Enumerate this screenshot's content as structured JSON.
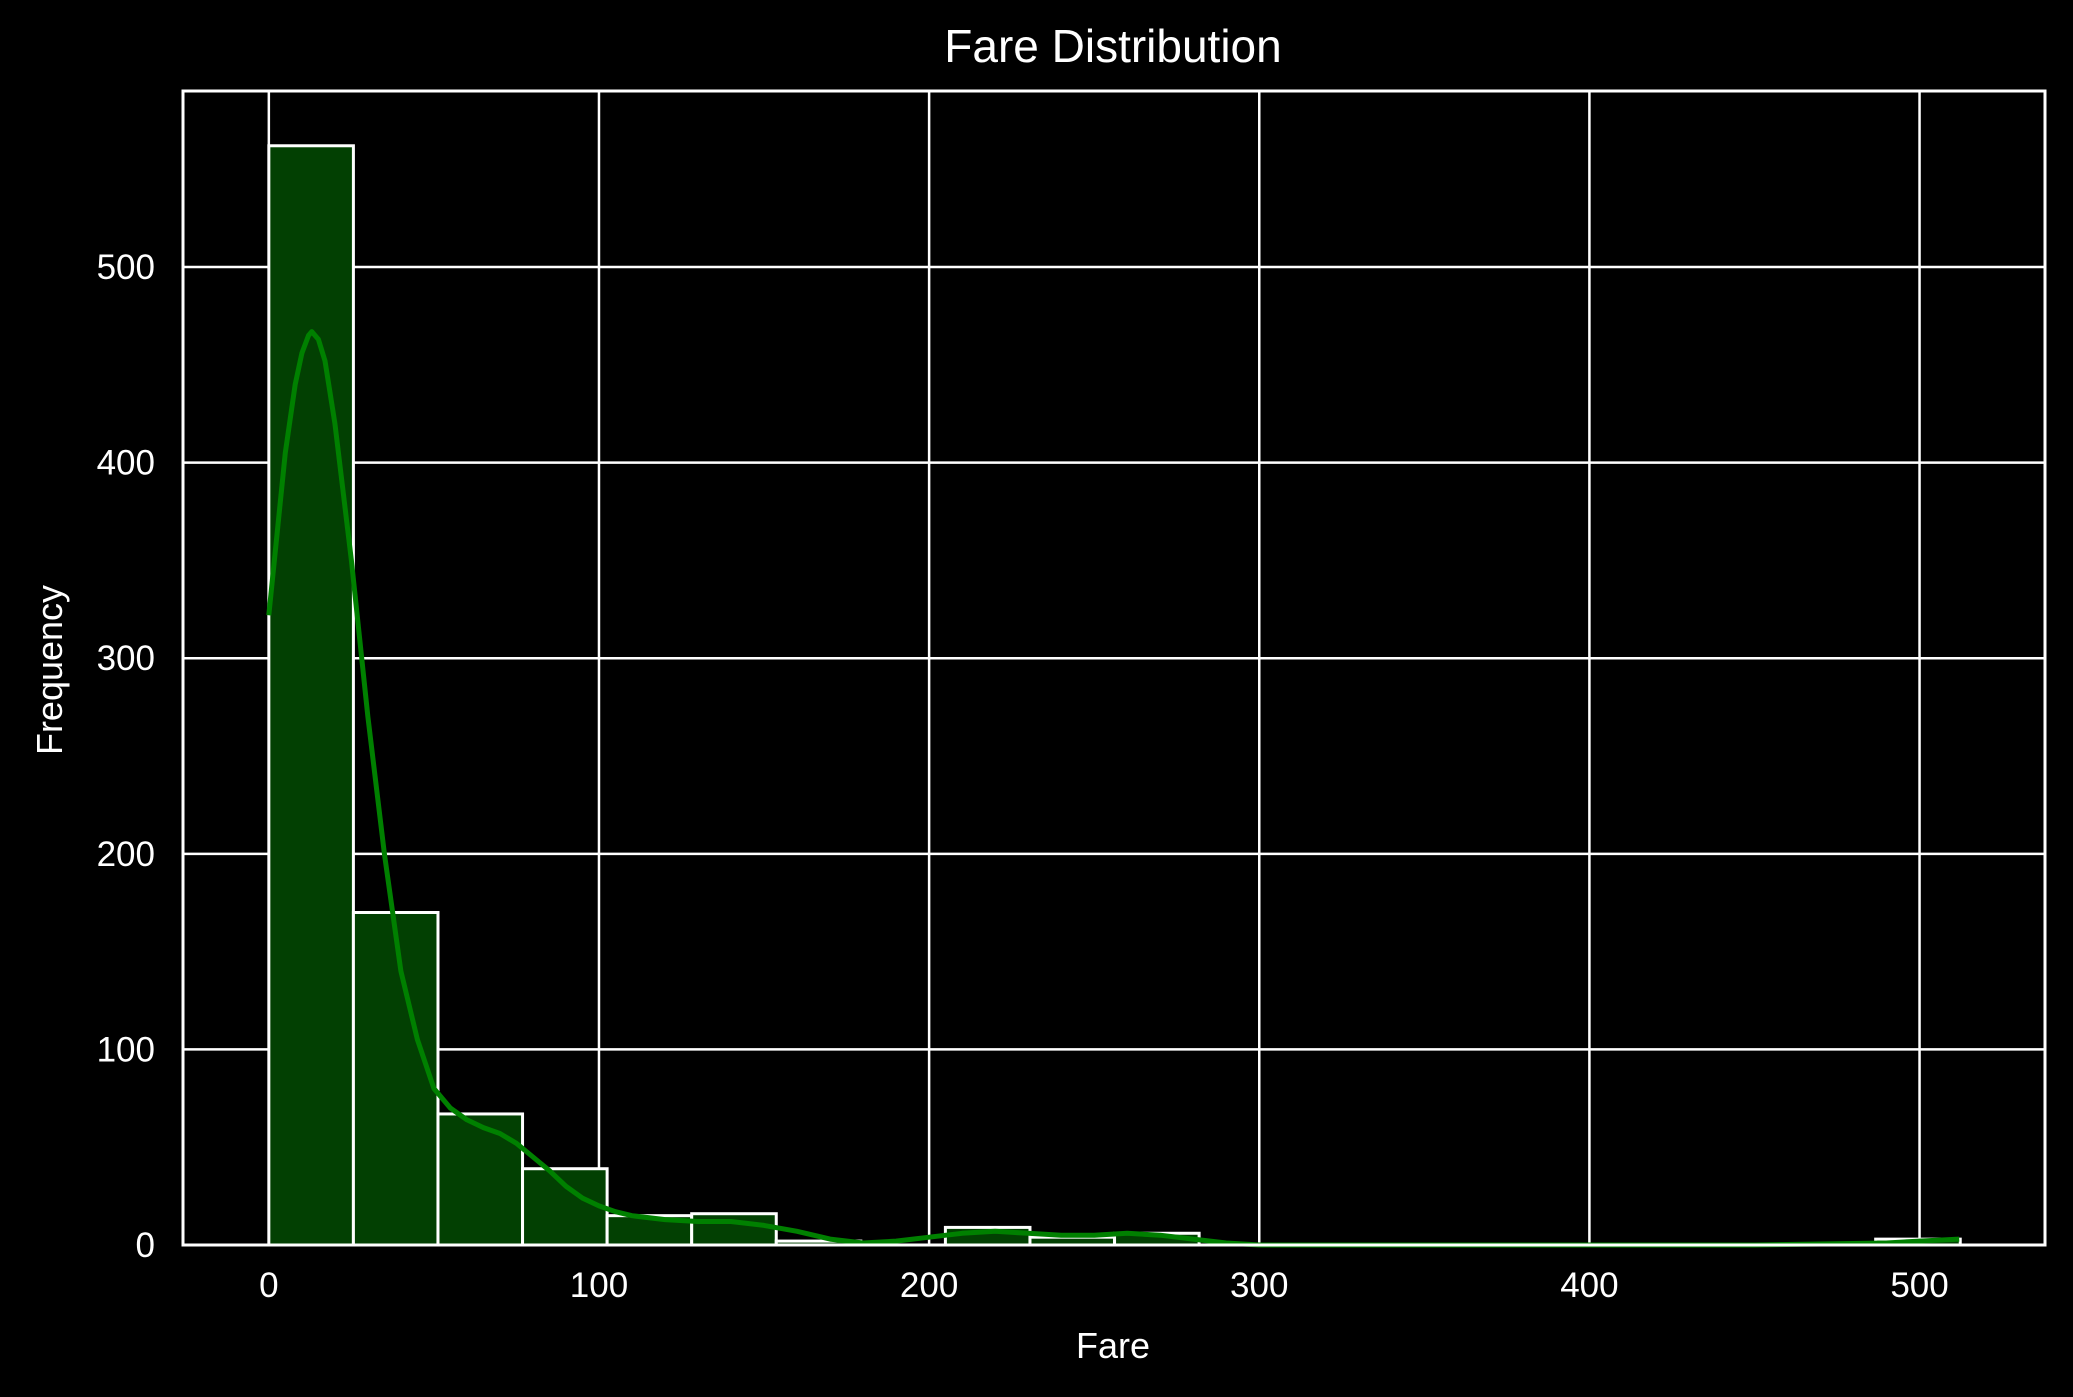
{
  "chart_data": {
    "type": "bar",
    "title": "Fare Distribution",
    "xlabel": "Fare",
    "ylabel": "Frequency",
    "xlim": [
      -26,
      538
    ],
    "ylim": [
      0,
      590
    ],
    "x_ticks": [
      0,
      100,
      200,
      300,
      400,
      500
    ],
    "y_ticks": [
      0,
      100,
      200,
      300,
      400,
      500
    ],
    "grid": true,
    "bin_width": 25.616,
    "bins": [
      {
        "start": 0.0,
        "count": 562
      },
      {
        "start": 25.616,
        "count": 170
      },
      {
        "start": 51.233,
        "count": 67
      },
      {
        "start": 76.849,
        "count": 39
      },
      {
        "start": 102.466,
        "count": 15
      },
      {
        "start": 128.082,
        "count": 16
      },
      {
        "start": 153.699,
        "count": 2
      },
      {
        "start": 179.315,
        "count": 0
      },
      {
        "start": 204.932,
        "count": 9
      },
      {
        "start": 230.548,
        "count": 4
      },
      {
        "start": 256.165,
        "count": 6
      },
      {
        "start": 281.781,
        "count": 0
      },
      {
        "start": 307.398,
        "count": 0
      },
      {
        "start": 333.014,
        "count": 0
      },
      {
        "start": 358.631,
        "count": 0
      },
      {
        "start": 384.247,
        "count": 0
      },
      {
        "start": 409.864,
        "count": 0
      },
      {
        "start": 435.48,
        "count": 0
      },
      {
        "start": 461.097,
        "count": 0
      },
      {
        "start": 486.713,
        "count": 3
      }
    ],
    "kde": {
      "x": [
        0,
        5,
        8,
        10,
        12,
        13,
        15,
        17,
        20,
        25,
        30,
        35,
        40,
        45,
        50,
        55,
        60,
        65,
        70,
        75,
        80,
        85,
        90,
        95,
        100,
        105,
        110,
        120,
        130,
        140,
        150,
        160,
        170,
        180,
        190,
        200,
        210,
        220,
        230,
        240,
        250,
        260,
        270,
        280,
        290,
        300,
        350,
        400,
        450,
        490,
        500,
        512
      ],
      "y": [
        322,
        405,
        440,
        456,
        465,
        467,
        463,
        452,
        420,
        350,
        270,
        200,
        140,
        105,
        80,
        70,
        64,
        60,
        57,
        52,
        45,
        38,
        30,
        24,
        20,
        17,
        15,
        13,
        12,
        12,
        10,
        7,
        3,
        1,
        2,
        4,
        6,
        7,
        6,
        5,
        5,
        6,
        5,
        3,
        1,
        0,
        0,
        0,
        0,
        1,
        2,
        3
      ]
    },
    "colors": {
      "background": "#000000",
      "bar_fill": "#024002",
      "bar_edge": "#ffffff",
      "kde_line": "#008000",
      "grid": "#ffffff",
      "text": "#ffffff"
    }
  }
}
